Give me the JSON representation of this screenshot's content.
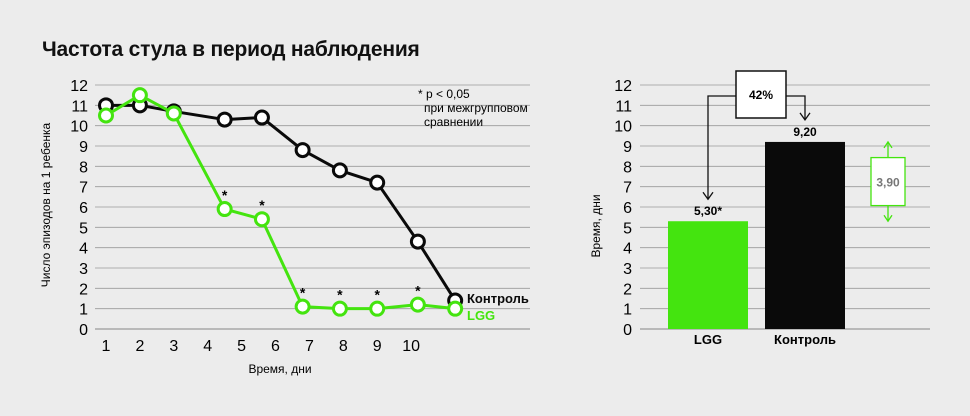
{
  "title": "Частота стула в период наблюдения",
  "colors": {
    "lgg": "#44e40f",
    "control": "#0a0a0a",
    "grid": "#9a9a9a",
    "background": "#ececec"
  },
  "chart_data": [
    {
      "type": "line",
      "xlabel": "Время, дни",
      "ylabel": "Число эпизодов на 1 ребенка",
      "x_ticks": [
        1,
        2,
        3,
        4,
        5,
        6,
        7,
        8,
        9,
        10
      ],
      "y_ticks": [
        0,
        1,
        2,
        3,
        4,
        5,
        6,
        7,
        8,
        9,
        10,
        11,
        12
      ],
      "ylim": [
        0,
        12
      ],
      "grid": "horizontal",
      "note": [
        "* p < 0,05",
        "при межгрупповом",
        "сравнении"
      ],
      "significance_marker": "*",
      "series": [
        {
          "name": "Контроль",
          "color": "#0a0a0a",
          "x": [
            1,
            2,
            3,
            4.5,
            5.6,
            6.8,
            7.9,
            9,
            10.2,
            11.3
          ],
          "values": [
            11.0,
            11.0,
            10.7,
            10.3,
            10.4,
            8.8,
            7.8,
            7.2,
            4.3,
            1.4
          ]
        },
        {
          "name": "LGG",
          "color": "#44e40f",
          "x": [
            1,
            2,
            3,
            4.5,
            5.6,
            6.8,
            7.9,
            9,
            10.2,
            11.3
          ],
          "values": [
            10.5,
            11.5,
            10.6,
            5.9,
            5.4,
            1.1,
            1.0,
            1.0,
            1.2,
            1.0
          ],
          "significant": [
            false,
            false,
            false,
            true,
            true,
            true,
            true,
            true,
            true,
            false
          ]
        }
      ]
    },
    {
      "type": "bar",
      "categories": [
        "LGG",
        "Контроль"
      ],
      "values": [
        5.3,
        9.2
      ],
      "value_labels": [
        "5,30*",
        "9,20"
      ],
      "colors": [
        "#44e40f",
        "#0a0a0a"
      ],
      "ylabel": "Время, дни",
      "y_ticks": [
        0,
        1,
        2,
        3,
        4,
        5,
        6,
        7,
        8,
        9,
        10,
        11,
        12
      ],
      "ylim": [
        0,
        12
      ],
      "grid": "horizontal",
      "annotations": {
        "reduction": "42%",
        "difference": "3,90"
      }
    }
  ]
}
